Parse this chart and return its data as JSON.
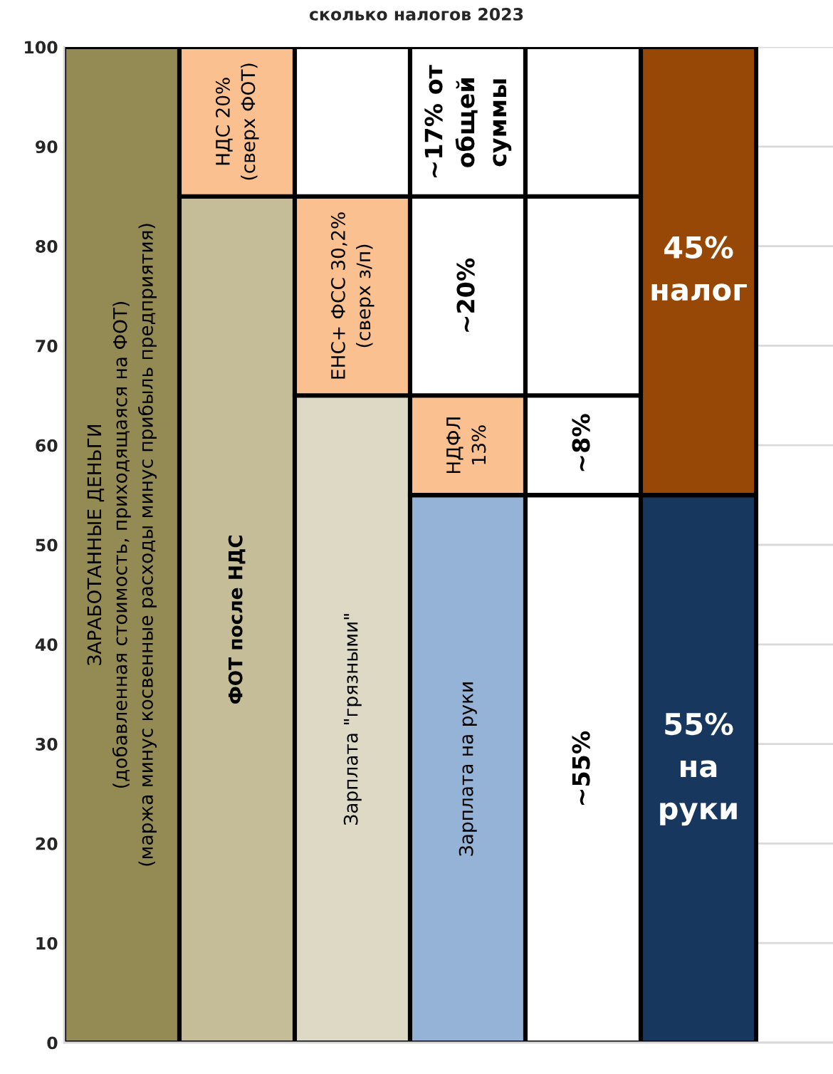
{
  "chart_data": {
    "type": "bar",
    "title": "сколько налогов 2023",
    "categories": [
      null,
      null,
      null,
      null,
      null,
      null
    ],
    "stacked": true,
    "ylim": [
      0,
      100
    ],
    "yticks": [
      0,
      10,
      20,
      30,
      40,
      50,
      60,
      70,
      80,
      90,
      100
    ],
    "grid": "y",
    "series": [
      {
        "values": [
          100,
          85,
          65,
          55,
          55,
          55
        ],
        "colors": [
          "#948a54",
          "#c4bd97",
          "#ddd9c4",
          "#95b3d7",
          "#ffffff",
          "#17375e"
        ],
        "value_labels": [
          "ЗАРАБОТАННЫЕ ДЕНЬГИ\n(добавленная стоимость, приходящаяся на ФОТ)\n(маржа минус косвенные расходы минус прибыль предприятия)",
          "ФОТ после НДС",
          "Зарплата \"грязными\"",
          "Зарплата на руки",
          "~55%",
          "55%\nна\nруки"
        ]
      },
      {
        "values": [
          null,
          15,
          20,
          10,
          10,
          45
        ],
        "colors": [
          null,
          "#fac090",
          "#fac090",
          "#fac090",
          "#ffffff",
          "#974806"
        ],
        "value_labels": [
          null,
          "НДС 20%\n(сверх ФОТ)",
          "ЕНС+ ФСС 30,2%\n(сверх з/п)",
          "НДФЛ\n13%",
          null,
          "45%\nналог"
        ]
      },
      {
        "values": [
          null,
          null,
          15,
          20,
          20,
          null
        ],
        "colors": [
          null,
          null,
          "#ffffff",
          "#ffffff",
          "#ffffff",
          null
        ],
        "value_labels": [
          null,
          null,
          null,
          "~20%",
          null,
          null
        ]
      },
      {
        "values": [
          null,
          null,
          null,
          15,
          15,
          null
        ],
        "colors": [
          null,
          null,
          null,
          "#ffffff",
          "#ffffff",
          null
        ]
      }
    ],
    "annotations": [
      {
        "text": "~17% от\nобщей\nсуммы",
        "y": 100
      },
      {
        "text": "~8%",
        "y": 65
      }
    ]
  }
}
